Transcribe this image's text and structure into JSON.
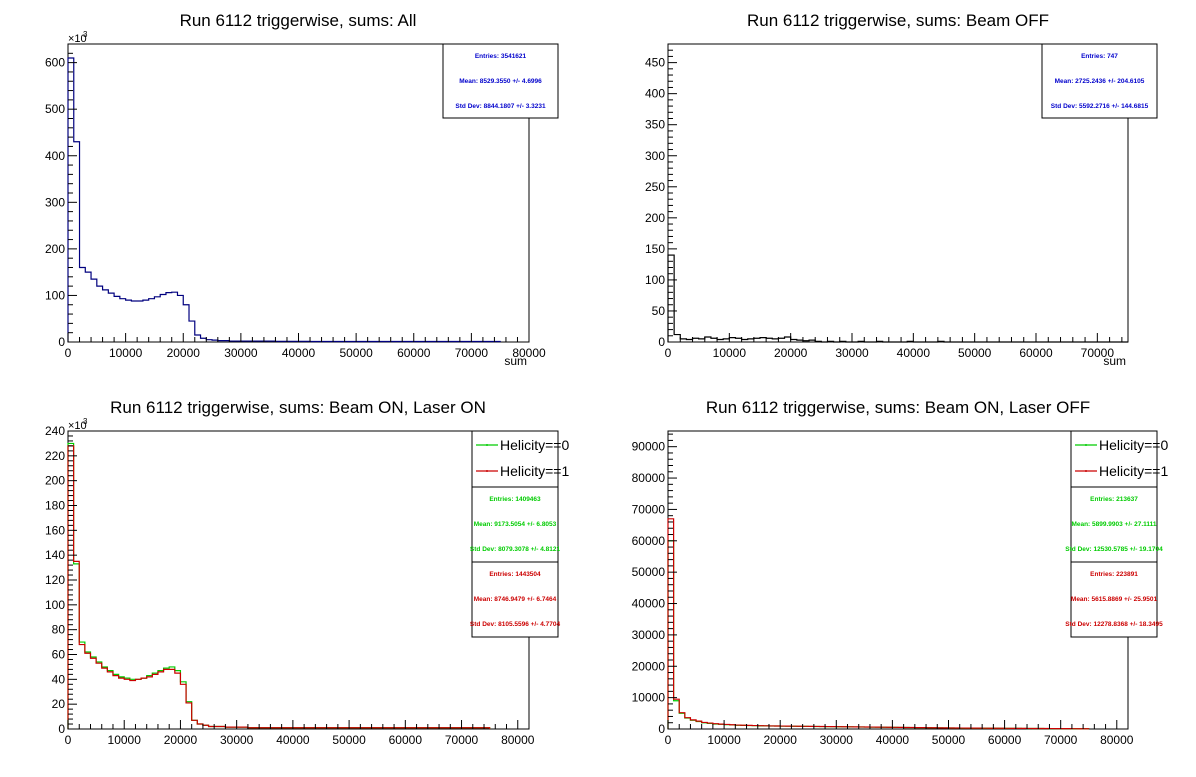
{
  "chart_data": [
    {
      "type": "histogram",
      "title": "Run 6112 triggerwise, sums: All",
      "xlabel": "sum",
      "xlim": [
        0,
        80000
      ],
      "ylim": [
        0,
        640
      ],
      "y_exponent": "×10",
      "y_exponent_power": "3",
      "xticks": [
        0,
        10000,
        20000,
        30000,
        40000,
        50000,
        60000,
        70000,
        80000
      ],
      "yticks": [
        0,
        100,
        200,
        300,
        400,
        500,
        600
      ],
      "bin_width": 1000,
      "series": [
        {
          "color": "#00007f",
          "values": [
            610,
            430,
            160,
            150,
            135,
            120,
            112,
            105,
            98,
            93,
            90,
            88,
            88,
            90,
            93,
            97,
            102,
            106,
            107,
            100,
            80,
            45,
            15,
            8,
            5,
            4,
            3,
            3,
            2,
            2,
            2,
            2,
            2,
            2,
            2,
            2,
            1.5,
            1.5,
            1.5,
            1.5,
            1.5,
            1.5,
            1,
            1,
            1,
            1,
            1,
            1,
            1,
            1,
            1,
            1,
            1,
            1,
            1,
            1,
            1,
            1,
            1,
            1,
            1,
            1,
            1,
            1,
            1,
            1,
            1,
            1,
            1,
            1,
            1,
            1,
            1,
            1,
            1
          ]
        }
      ],
      "stats": [
        {
          "color": "#0000cc",
          "entries": "Entries: 3541621",
          "mean": "Mean: 8529.3550 +/- 4.6996",
          "std": "Std Dev: 8844.1807 +/- 3.3231"
        }
      ]
    },
    {
      "type": "histogram",
      "title": "Run 6112 triggerwise, sums: Beam OFF",
      "xlabel": "sum",
      "xlim": [
        0,
        75000
      ],
      "ylim": [
        0,
        480
      ],
      "y_exponent": "",
      "y_exponent_power": "",
      "xticks": [
        0,
        10000,
        20000,
        30000,
        40000,
        50000,
        60000,
        70000
      ],
      "yticks": [
        0,
        50,
        100,
        150,
        200,
        250,
        300,
        350,
        400,
        450
      ],
      "bin_width": 1000,
      "series": [
        {
          "color": "#000000",
          "values": [
            140,
            12,
            5,
            4,
            6,
            5,
            8,
            6,
            4,
            5,
            7,
            6,
            4,
            5,
            6,
            7,
            6,
            5,
            6,
            8,
            4,
            3,
            2,
            3,
            1,
            0,
            1,
            0,
            1,
            0,
            0,
            1,
            0,
            0,
            1,
            0,
            0,
            0,
            0,
            1,
            0,
            0,
            0,
            0,
            1,
            0,
            0,
            0,
            0,
            0,
            0,
            0,
            0,
            0,
            0,
            0,
            0,
            0,
            0,
            0,
            0,
            0,
            0,
            0,
            0,
            0,
            0,
            0,
            0,
            0,
            0,
            0,
            0,
            0,
            0
          ]
        }
      ],
      "stats": [
        {
          "color": "#0000cc",
          "entries": "Entries: 747",
          "mean": "Mean: 2725.2436 +/- 204.6105",
          "std": "Std Dev: 5592.2716 +/- 144.6815"
        }
      ]
    },
    {
      "type": "histogram",
      "title": "Run 6112 triggerwise, sums: Beam ON, Laser ON",
      "xlabel": "",
      "xlim": [
        0,
        82000
      ],
      "ylim": [
        0,
        240
      ],
      "y_exponent": "×10",
      "y_exponent_power": "3",
      "xticks": [
        0,
        10000,
        20000,
        30000,
        40000,
        50000,
        60000,
        70000,
        80000
      ],
      "yticks": [
        0,
        20,
        40,
        60,
        80,
        100,
        120,
        140,
        160,
        180,
        200,
        220,
        240
      ],
      "bin_width": 1000,
      "series": [
        {
          "name": "Helicity==0",
          "color": "#00cc00",
          "values": [
            230,
            133,
            70,
            62,
            58,
            54,
            50,
            47,
            44,
            42,
            41,
            40,
            40,
            41,
            43,
            45,
            47,
            49,
            50,
            47,
            38,
            22,
            7,
            4,
            3,
            2,
            2,
            2,
            1.5,
            1.5,
            1.5,
            1.5,
            1,
            1,
            1,
            1,
            1,
            1,
            1,
            1,
            1,
            1,
            1,
            1,
            1,
            1,
            1,
            1,
            1,
            1,
            1,
            1,
            1,
            1,
            1,
            1,
            1,
            1,
            1,
            1,
            1,
            1,
            1,
            1,
            1,
            1,
            1,
            1,
            1,
            1,
            1,
            1,
            1,
            1,
            1
          ]
        },
        {
          "name": "Helicity==1",
          "color": "#cc0000",
          "values": [
            228,
            135,
            68,
            61,
            57,
            53,
            49,
            46,
            43,
            41,
            40,
            39,
            40,
            41,
            42,
            44,
            46,
            48,
            48,
            45,
            36,
            21,
            7,
            4,
            3,
            2,
            2,
            2,
            1.5,
            1.5,
            1.5,
            1.5,
            1,
            1,
            1,
            1,
            1,
            1,
            1,
            1,
            1,
            1,
            1,
            1,
            1,
            1,
            1,
            1,
            1,
            1,
            1,
            1,
            1,
            1,
            1,
            1,
            1,
            1,
            1,
            1,
            1,
            1,
            1,
            1,
            1,
            1,
            1,
            1,
            1,
            1,
            1,
            1,
            1,
            1,
            1
          ]
        }
      ],
      "stats": [
        {
          "color": "#00cc00",
          "entries": "Entries: 1409463",
          "mean": "Mean: 9173.5054 +/- 6.8053",
          "std": "Std Dev: 8079.3078 +/- 4.8121"
        },
        {
          "color": "#cc0000",
          "entries": "Entries: 1443504",
          "mean": "Mean: 8746.9479 +/- 6.7464",
          "std": "Std Dev: 8105.5596 +/- 4.7704"
        }
      ]
    },
    {
      "type": "histogram",
      "title": "Run 6112 triggerwise, sums: Beam ON, Laser OFF",
      "xlabel": "",
      "xlim": [
        0,
        82000
      ],
      "ylim": [
        0,
        95000
      ],
      "y_exponent": "",
      "y_exponent_power": "",
      "xticks": [
        0,
        10000,
        20000,
        30000,
        40000,
        50000,
        60000,
        70000,
        80000
      ],
      "yticks": [
        0,
        10000,
        20000,
        30000,
        40000,
        50000,
        60000,
        70000,
        80000,
        90000
      ],
      "bin_width": 1000,
      "series": [
        {
          "name": "Helicity==0",
          "color": "#00cc00",
          "values": [
            60000,
            9000,
            5000,
            3500,
            2800,
            2400,
            2000,
            1800,
            1600,
            1500,
            1400,
            1300,
            1200,
            1150,
            1100,
            1050,
            1000,
            1000,
            950,
            950,
            900,
            900,
            880,
            860,
            840,
            820,
            800,
            780,
            760,
            740,
            720,
            700,
            680,
            660,
            640,
            620,
            600,
            580,
            560,
            540,
            520,
            500,
            480,
            460,
            440,
            420,
            400,
            380,
            360,
            340,
            320,
            300,
            290,
            280,
            270,
            260,
            250,
            240,
            230,
            220,
            210,
            200,
            190,
            180,
            170,
            160,
            150,
            140,
            130,
            120,
            110,
            100,
            90,
            80,
            70
          ]
        },
        {
          "name": "Helicity==1",
          "color": "#cc0000",
          "values": [
            67000,
            9500,
            5200,
            3600,
            2900,
            2500,
            2100,
            1900,
            1700,
            1550,
            1450,
            1350,
            1250,
            1200,
            1150,
            1100,
            1050,
            1020,
            980,
            960,
            930,
            910,
            890,
            870,
            850,
            830,
            810,
            790,
            770,
            750,
            730,
            710,
            690,
            670,
            650,
            630,
            610,
            590,
            570,
            550,
            530,
            510,
            490,
            470,
            450,
            430,
            410,
            390,
            370,
            350,
            330,
            310,
            300,
            290,
            280,
            270,
            260,
            250,
            240,
            230,
            220,
            210,
            200,
            190,
            180,
            170,
            160,
            150,
            140,
            130,
            120,
            110,
            100,
            90,
            80
          ]
        }
      ],
      "stats": [
        {
          "color": "#00cc00",
          "entries": "Entries: 213637",
          "mean": "Mean: 5899.9903 +/- 27.1111",
          "std": "Std Dev: 12530.5785 +/- 19.1704"
        },
        {
          "color": "#cc0000",
          "entries": "Entries: 223891",
          "mean": "Mean: 5615.8869 +/- 25.9501",
          "std": "Std Dev: 12278.8368 +/- 18.3495"
        }
      ]
    }
  ]
}
